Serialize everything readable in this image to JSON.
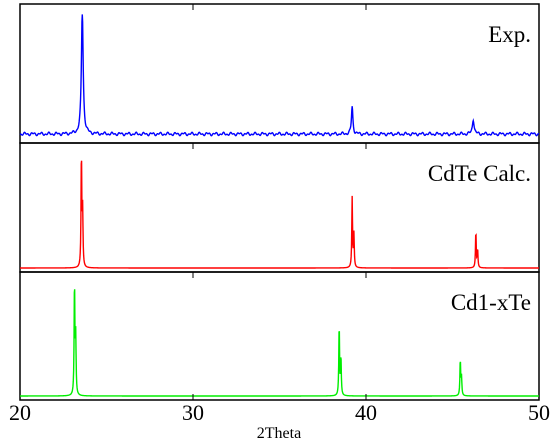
{
  "chart_data": {
    "type": "line",
    "xlabel": "2Theta",
    "xlim": [
      20,
      50
    ],
    "x_ticks": [
      20,
      30,
      40,
      50
    ],
    "tick_labels": [
      "20",
      "30",
      "40",
      "50"
    ],
    "panels": [
      {
        "name": "Exp.",
        "color": "#0000ff",
        "baseline": 0.04,
        "peaks": [
          {
            "x": 23.6,
            "y": 1.0,
            "w": 0.12
          },
          {
            "x": 39.2,
            "y": 0.22,
            "w": 0.1
          },
          {
            "x": 46.2,
            "y": 0.12,
            "w": 0.12
          }
        ]
      },
      {
        "name": "CdTe Calc.",
        "color": "#ff0000",
        "baseline": 0.0,
        "peaks": [
          {
            "x": 23.55,
            "y": 1.0,
            "w": 0.05
          },
          {
            "x": 23.62,
            "y": 0.48,
            "w": 0.05
          },
          {
            "x": 39.2,
            "y": 0.61,
            "w": 0.05
          },
          {
            "x": 39.3,
            "y": 0.29,
            "w": 0.05
          },
          {
            "x": 46.35,
            "y": 0.32,
            "w": 0.05
          },
          {
            "x": 46.45,
            "y": 0.16,
            "w": 0.05
          }
        ]
      },
      {
        "name": "Cd1-xTe",
        "color": "#00ee00",
        "baseline": 0.0,
        "peaks": [
          {
            "x": 23.15,
            "y": 1.0,
            "w": 0.05
          },
          {
            "x": 23.22,
            "y": 0.5,
            "w": 0.05
          },
          {
            "x": 38.45,
            "y": 0.63,
            "w": 0.05
          },
          {
            "x": 38.55,
            "y": 0.34,
            "w": 0.05
          },
          {
            "x": 45.45,
            "y": 0.32,
            "w": 0.05
          },
          {
            "x": 45.52,
            "y": 0.16,
            "w": 0.05
          }
        ]
      }
    ]
  }
}
